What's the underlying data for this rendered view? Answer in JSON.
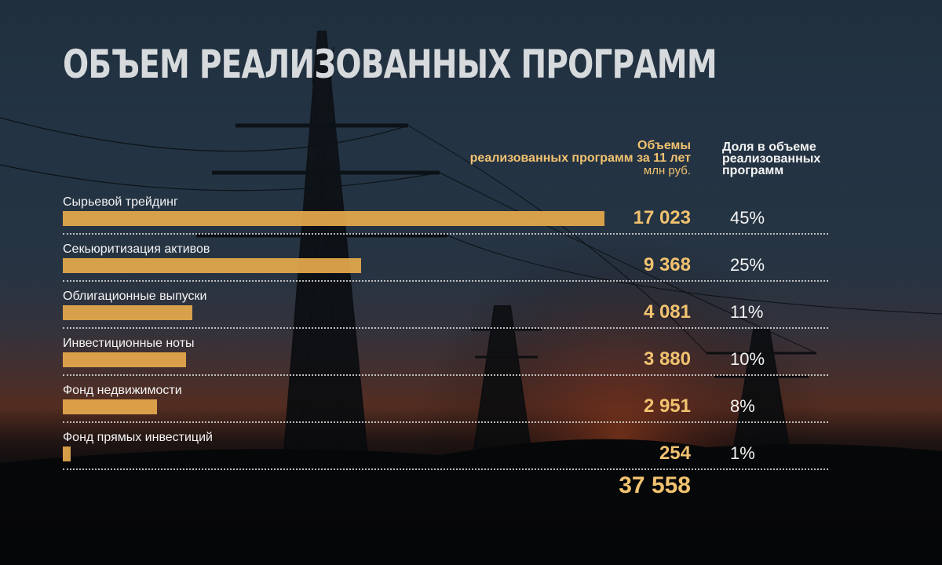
{
  "title": "ОБЪЕМ РЕАЛИЗОВАННЫХ ПРОГРАММ",
  "colors": {
    "bar": "#e6a94c",
    "value": "#f1c270",
    "text": "#f4f4f4"
  },
  "headers": {
    "volume": {
      "line1": "Объемы",
      "line2": "реализованных программ за 11 лет",
      "unit": "млн руб."
    },
    "share": {
      "line1": "Доля в объеме",
      "line2": "реализованных",
      "line3": "программ"
    }
  },
  "total": "37 558",
  "chart_data": {
    "type": "bar",
    "orientation": "horizontal",
    "categories": [
      "Сырьевой трейдинг",
      "Секьюритизация активов",
      "Облигационные выпуски",
      "Инвестиционные ноты",
      "Фонд недвижимости",
      "Фонд прямых инвестиций"
    ],
    "values": [
      17023,
      9368,
      4081,
      3880,
      2951,
      254
    ],
    "value_labels": [
      "17 023",
      "9 368",
      "4 081",
      "3 880",
      "2 951",
      "254"
    ],
    "shares": [
      "45%",
      "25%",
      "11%",
      "10%",
      "8%",
      "1%"
    ],
    "xlim": [
      0,
      17023
    ],
    "grid": false,
    "legend": "none"
  }
}
